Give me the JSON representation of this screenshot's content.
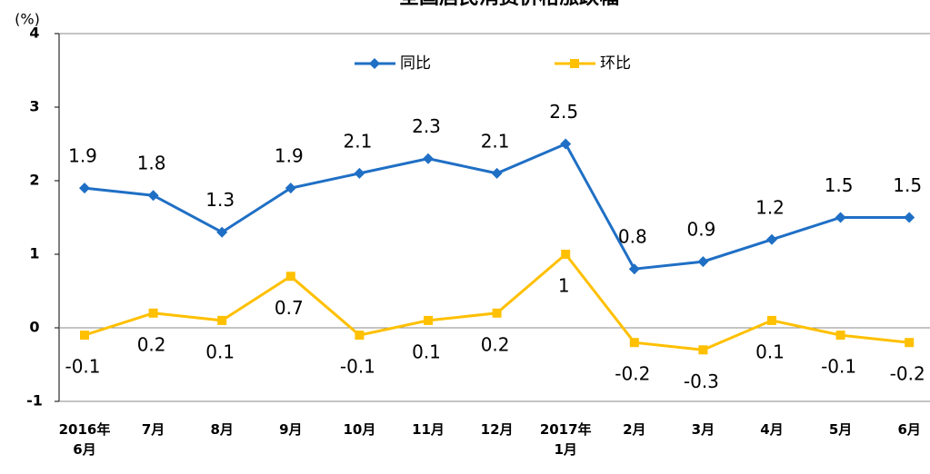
{
  "chart_data": {
    "type": "line",
    "title": "全国居民消费价格涨跌幅",
    "y_label": "(%)",
    "categories": [
      "2016年\n6月",
      "7月",
      "8月",
      "9月",
      "10月",
      "11月",
      "12月",
      "2017年\n1月",
      "2月",
      "3月",
      "4月",
      "5月",
      "6月"
    ],
    "series": [
      {
        "name": "同比",
        "color": "#1f6fc5",
        "marker": "diamond",
        "values": [
          1.9,
          1.8,
          1.3,
          1.9,
          2.1,
          2.3,
          2.1,
          2.5,
          0.8,
          0.9,
          1.2,
          1.5,
          1.5
        ]
      },
      {
        "name": "环比",
        "color": "#ffc000",
        "marker": "square",
        "values": [
          -0.1,
          0.2,
          0.1,
          0.7,
          -0.1,
          0.1,
          0.2,
          1.0,
          -0.2,
          -0.3,
          0.1,
          -0.1,
          -0.2
        ]
      }
    ],
    "ylim": [
      -1,
      4
    ],
    "yticks": [
      -1,
      0,
      1,
      2,
      3,
      4
    ],
    "legend": "top"
  }
}
